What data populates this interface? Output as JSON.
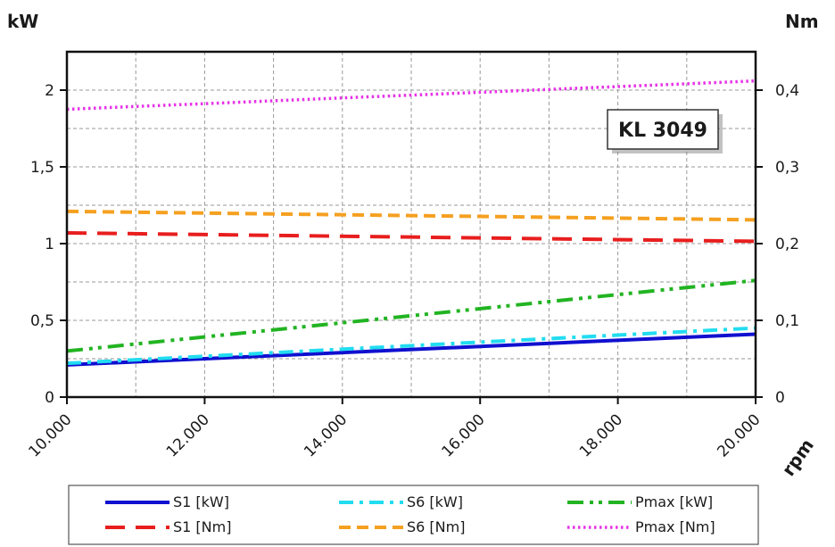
{
  "chart_data": {
    "type": "line",
    "model_label": "KL 3049",
    "x_unit": "rpm",
    "y_left_unit": "kW",
    "y_right_unit": "Nm",
    "xlim": [
      10000,
      20000
    ],
    "ylim_left": [
      0,
      2.25
    ],
    "ylim_right": [
      0,
      0.45
    ],
    "x_ticks": [
      10000,
      12000,
      14000,
      16000,
      18000,
      20000
    ],
    "x_tick_labels": [
      "10.000",
      "12.000",
      "14.000",
      "16.000",
      "18.000",
      "20.000"
    ],
    "y_left_ticks": [
      0,
      0.5,
      1,
      1.5,
      2
    ],
    "y_left_tick_labels": [
      "0",
      "0,5",
      "1",
      "1,5",
      "2"
    ],
    "y_right_ticks": [
      0,
      0.1,
      0.2,
      0.3,
      0.4
    ],
    "y_right_tick_labels": [
      "0",
      "0,1",
      "0,2",
      "0,3",
      "0,4"
    ],
    "grid": true,
    "legend_position": "bottom",
    "series": [
      {
        "name": "S1 [kW]",
        "axis": "left",
        "color": "#1010d0",
        "style": "solid",
        "x": [
          10000,
          20000
        ],
        "y": [
          0.21,
          0.41
        ]
      },
      {
        "name": "S6 [kW]",
        "axis": "left",
        "color": "#22dcf0",
        "style": "dashdot",
        "x": [
          10000,
          20000
        ],
        "y": [
          0.22,
          0.45
        ]
      },
      {
        "name": "Pmax [kW]",
        "axis": "left",
        "color": "#22b422",
        "style": "dashdotdot",
        "x": [
          10000,
          20000
        ],
        "y": [
          0.3,
          0.76
        ]
      },
      {
        "name": "S1 [Nm]",
        "axis": "right",
        "color": "#e81e1e",
        "style": "longdash",
        "x": [
          10000,
          20000
        ],
        "y": [
          0.214,
          0.203
        ]
      },
      {
        "name": "S6 [Nm]",
        "axis": "right",
        "color": "#f5a020",
        "style": "dash",
        "x": [
          10000,
          20000
        ],
        "y": [
          0.242,
          0.231
        ]
      },
      {
        "name": "Pmax [Nm]",
        "axis": "right",
        "color": "#e832e8",
        "style": "dotted",
        "x": [
          10000,
          20000
        ],
        "y": [
          0.375,
          0.412
        ]
      }
    ]
  }
}
